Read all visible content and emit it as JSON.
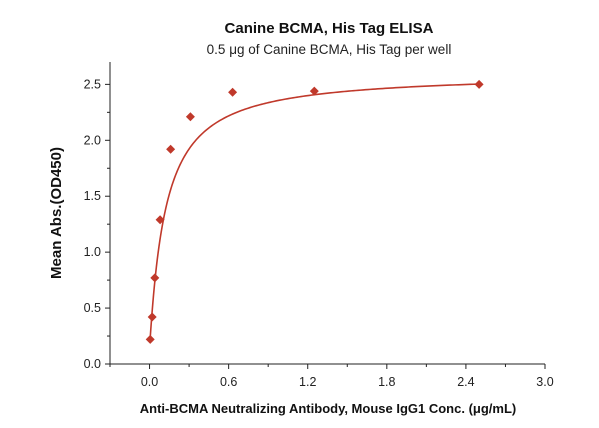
{
  "chart_data": {
    "type": "scatter",
    "title": "Canine BCMA, His Tag ELISA",
    "subtitle": "0.5 μg of Canine BCMA, His Tag per well",
    "xlabel": "Anti-BCMA Neutralizing Antibody, Mouse IgG1 Conc. (μg/mL)",
    "ylabel": "Mean Abs.(OD450)",
    "xlim": [
      -0.3,
      3.0
    ],
    "ylim": [
      0.0,
      2.7
    ],
    "xticks": [
      0.0,
      0.6,
      1.2,
      1.8,
      2.4,
      3.0
    ],
    "xtick_labels": [
      "0.0",
      "0.6",
      "1.2",
      "1.8",
      "2.4",
      "3.0"
    ],
    "yticks": [
      0.0,
      0.5,
      1.0,
      1.5,
      2.0,
      2.5
    ],
    "ytick_labels": [
      "0.0",
      "0.5",
      "1.0",
      "1.5",
      "2.0",
      "2.5"
    ],
    "grid": false,
    "series": [
      {
        "x": [
          0.005,
          0.02,
          0.04,
          0.08,
          0.16,
          0.31,
          0.63,
          1.25,
          2.5
        ],
        "y": [
          0.22,
          0.42,
          0.77,
          1.29,
          1.92,
          2.21,
          2.43,
          2.44,
          2.5
        ],
        "marker": "diamond",
        "color": "#c0392b",
        "fit_line": true
      }
    ]
  }
}
